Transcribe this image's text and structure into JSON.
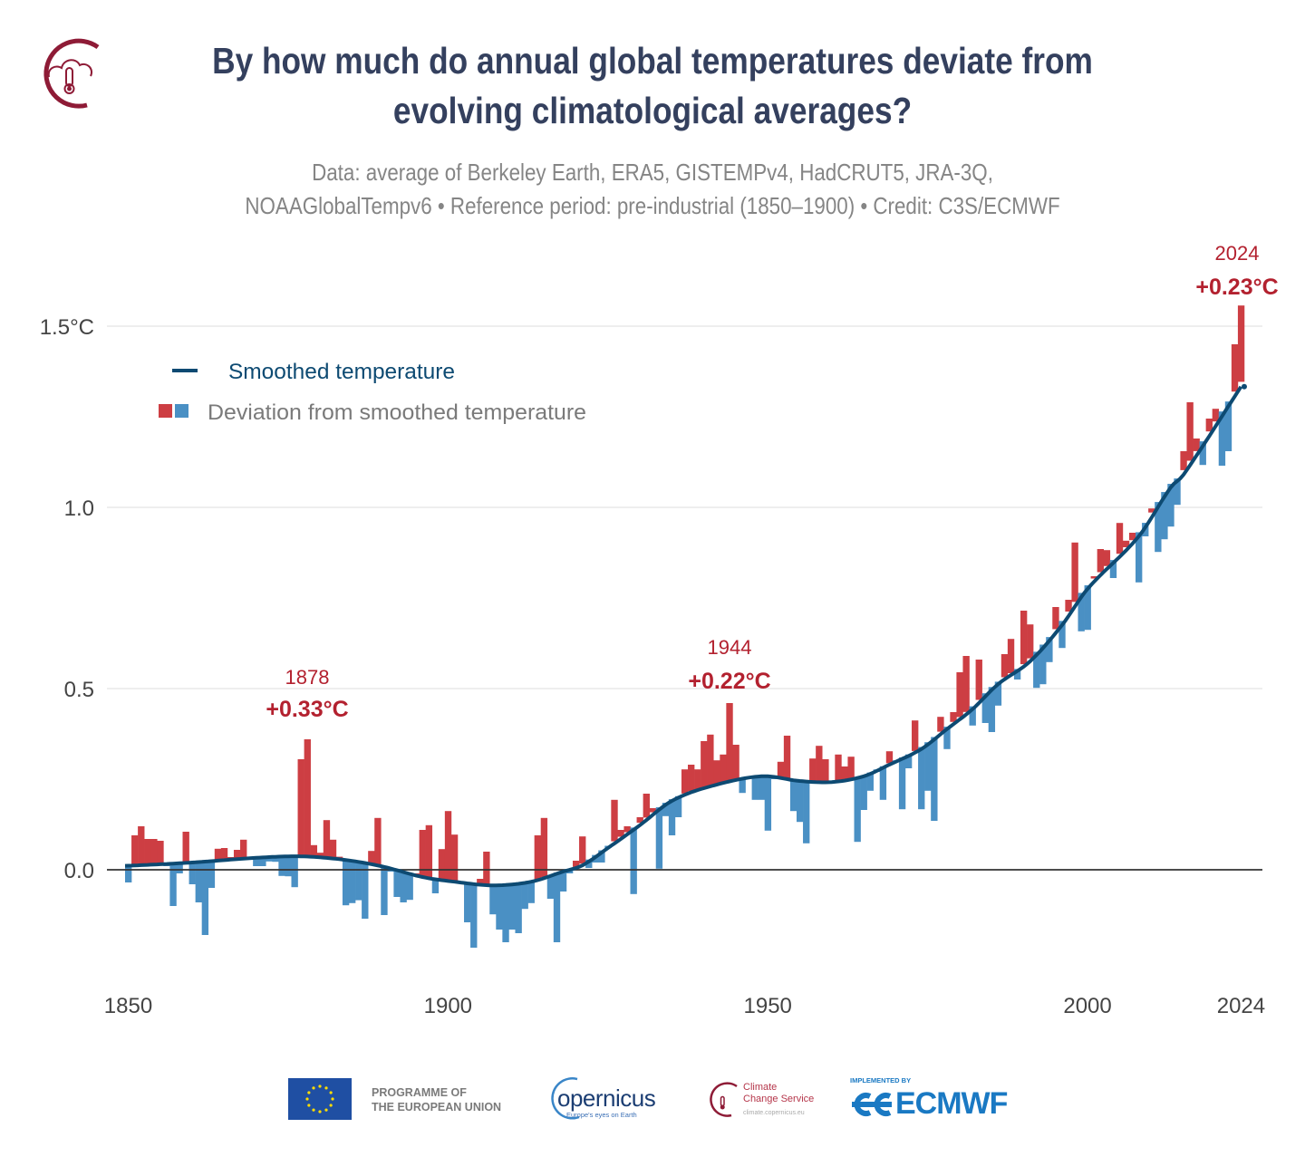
{
  "header": {
    "title_line1": "By how much do annual global temperatures deviate from",
    "title_line2": "evolving climatological averages?",
    "subtitle_line1": "Data: average of Berkeley Earth, ERA5, GISTEMPv4, HadCRUT5, JRA-3Q,",
    "subtitle_line2": "NOAAGlobalTempv6 • Reference period: pre-industrial (1850–1900) • Credit: C3S/ECMWF",
    "logo_icon": "cloud-thermometer-icon"
  },
  "colors": {
    "title": "#34405e",
    "subtitle": "#858585",
    "positive": "#cd3e43",
    "negative": "#4a90c4",
    "smoothed": "#0d4a72",
    "annotation": "#b3212f",
    "grid": "#e4e4e4",
    "zero": "#333333"
  },
  "chart_data": {
    "type": "bar",
    "title": "By how much do annual global temperatures deviate from evolving climatological averages?",
    "xlabel": "",
    "ylabel": "",
    "x_ticks": [
      "1850",
      "1900",
      "1950",
      "2000",
      "2024"
    ],
    "x_tick_values": [
      1850,
      1900,
      1950,
      2000,
      2024
    ],
    "y_ticks": [
      "0.0",
      "0.5",
      "1.0",
      "1.5°C"
    ],
    "y_tick_values": [
      0,
      0.5,
      1.0,
      1.5
    ],
    "xlim": [
      1850,
      2024
    ],
    "ylim": [
      -0.25,
      1.6
    ],
    "grid": "horizontal",
    "legend_position": "top-left",
    "legend": [
      {
        "label": "Smoothed temperature",
        "type": "line"
      },
      {
        "label": "Deviation from smoothed temperature",
        "type": "bars"
      }
    ],
    "annotations": [
      {
        "year": "1878",
        "text": "+0.33°C"
      },
      {
        "year": "1944",
        "text": "+0.22°C"
      },
      {
        "year": "2024",
        "text": "+0.23°C"
      }
    ],
    "start_year": 1850,
    "annual": [
      -0.035,
      0.095,
      0.12,
      0.085,
      0.085,
      0.08,
      0.01,
      -0.1,
      -0.01,
      0.105,
      -0.04,
      -0.09,
      -0.18,
      -0.05,
      0.058,
      0.06,
      0.035,
      0.055,
      0.083,
      0.03,
      0.01,
      0.01,
      0.023,
      0.022,
      -0.017,
      -0.018,
      -0.048,
      0.305,
      0.36,
      0.068,
      0.047,
      0.137,
      0.083,
      0.036,
      -0.098,
      -0.092,
      -0.084,
      -0.135,
      0.052,
      0.143,
      -0.125,
      -0.005,
      -0.075,
      -0.09,
      -0.083,
      -0.01,
      0.11,
      0.123,
      -0.065,
      0.057,
      0.162,
      0.097,
      -0.035,
      -0.145,
      -0.215,
      -0.025,
      0.05,
      -0.123,
      -0.165,
      -0.2,
      -0.165,
      -0.175,
      -0.108,
      -0.092,
      0.095,
      0.143,
      -0.08,
      -0.2,
      -0.06,
      -0.01,
      0.025,
      0.092,
      0.005,
      0.02,
      0.02,
      0.06,
      0.193,
      0.11,
      0.12,
      -0.067,
      0.145,
      0.21,
      0.17,
      0.003,
      0.148,
      0.095,
      0.145,
      0.277,
      0.29,
      0.277,
      0.355,
      0.373,
      0.302,
      0.318,
      0.46,
      0.345,
      0.212,
      0.255,
      0.193,
      0.193,
      0.108,
      0.25,
      0.298,
      0.37,
      0.162,
      0.132,
      0.073,
      0.307,
      0.342,
      0.305,
      0.24,
      0.318,
      0.285,
      0.312,
      0.077,
      0.165,
      0.218,
      0.27,
      0.193,
      0.327,
      0.3,
      0.167,
      0.28,
      0.412,
      0.167,
      0.218,
      0.135,
      0.422,
      0.333,
      0.435,
      0.545,
      0.59,
      0.398,
      0.58,
      0.405,
      0.38,
      0.453,
      0.595,
      0.637,
      0.525,
      0.715,
      0.677,
      0.502,
      0.512,
      0.573,
      0.725,
      0.612,
      0.745,
      0.903,
      0.658,
      0.662,
      0.81,
      0.885,
      0.882,
      0.805,
      0.957,
      0.908,
      0.93,
      0.793,
      0.92,
      0.997,
      0.877,
      0.912,
      0.947,
      1.007,
      1.155,
      1.29,
      1.19,
      1.117,
      1.245,
      1.272,
      1.115,
      1.155,
      1.45,
      1.557
    ],
    "smoothed": {
      "x": [
        1850,
        1860,
        1870,
        1877,
        1884,
        1890,
        1896,
        1901,
        1907,
        1913,
        1918,
        1921,
        1925,
        1930,
        1935,
        1941,
        1949,
        1955,
        1960,
        1965,
        1969,
        1974,
        1978,
        1982,
        1986,
        1991,
        1996,
        2000,
        2008,
        2013,
        2015,
        2024
      ],
      "y": [
        0.011,
        0.02,
        0.033,
        0.037,
        0.027,
        0.008,
        -0.02,
        -0.033,
        -0.043,
        -0.033,
        -0.005,
        0.012,
        0.06,
        0.123,
        0.19,
        0.23,
        0.258,
        0.245,
        0.242,
        0.258,
        0.29,
        0.333,
        0.388,
        0.443,
        0.512,
        0.575,
        0.675,
        0.775,
        0.92,
        1.055,
        1.09,
        1.333
      ]
    }
  },
  "footer": {
    "eu_line1": "PROGRAMME OF",
    "eu_line2": "THE EUROPEAN UNION",
    "copernicus": "opernicus",
    "copernicus_tag": "Europe's eyes on Earth",
    "c3s_line1": "Climate",
    "c3s_line2": "Change Service",
    "c3s_url": "climate.copernicus.eu",
    "ecmwf_impl": "IMPLEMENTED BY",
    "ecmwf": "ECMWF"
  }
}
